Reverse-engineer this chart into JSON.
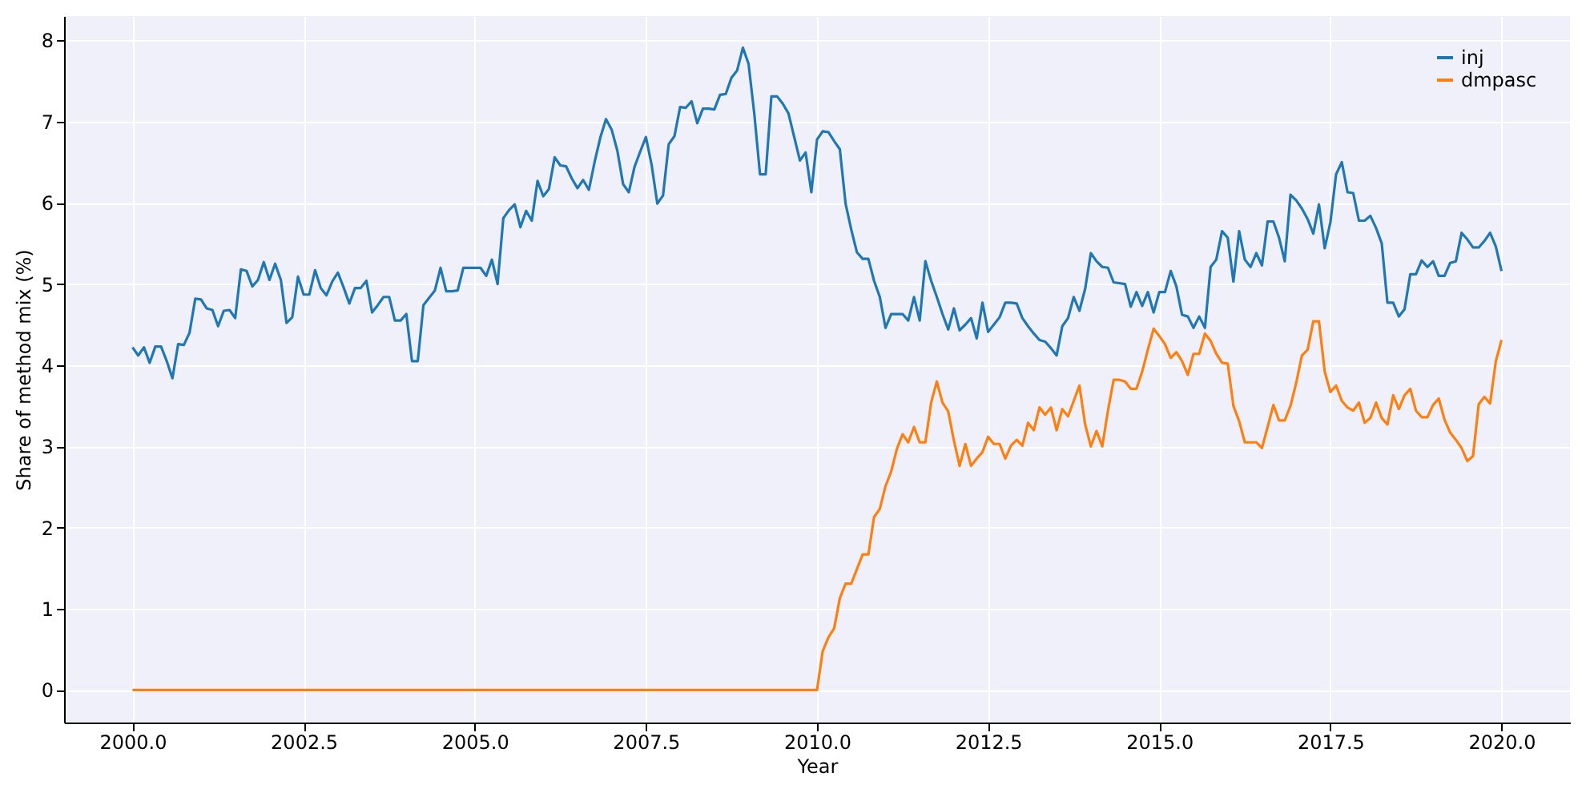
{
  "chart_data": {
    "type": "line",
    "xlabel": "Year",
    "ylabel": "Share of method mix (%)",
    "x": [
      2000,
      2000.083,
      2000.167,
      2000.25,
      2000.333,
      2000.417,
      2000.5,
      2000.583,
      2000.667,
      2000.75,
      2000.833,
      2000.917,
      2001,
      2001.083,
      2001.167,
      2001.25,
      2001.333,
      2001.417,
      2001.5,
      2001.583,
      2001.667,
      2001.75,
      2001.833,
      2001.917,
      2002,
      2002.083,
      2002.167,
      2002.25,
      2002.333,
      2002.417,
      2002.5,
      2002.583,
      2002.667,
      2002.75,
      2002.833,
      2002.917,
      2003,
      2003.083,
      2003.167,
      2003.25,
      2003.333,
      2003.417,
      2003.5,
      2003.583,
      2003.667,
      2003.75,
      2003.833,
      2003.917,
      2004,
      2004.083,
      2004.167,
      2004.25,
      2004.333,
      2004.417,
      2004.5,
      2004.583,
      2004.667,
      2004.75,
      2004.833,
      2004.917,
      2005,
      2005.083,
      2005.167,
      2005.25,
      2005.333,
      2005.417,
      2005.5,
      2005.583,
      2005.667,
      2005.75,
      2005.833,
      2005.917,
      2006,
      2006.083,
      2006.167,
      2006.25,
      2006.333,
      2006.417,
      2006.5,
      2006.583,
      2006.667,
      2006.75,
      2006.833,
      2006.917,
      2007,
      2007.083,
      2007.167,
      2007.25,
      2007.333,
      2007.417,
      2007.5,
      2007.583,
      2007.667,
      2007.75,
      2007.833,
      2007.917,
      2008,
      2008.083,
      2008.167,
      2008.25,
      2008.333,
      2008.417,
      2008.5,
      2008.583,
      2008.667,
      2008.75,
      2008.833,
      2008.917,
      2009,
      2009.083,
      2009.167,
      2009.25,
      2009.333,
      2009.417,
      2009.5,
      2009.583,
      2009.667,
      2009.75,
      2009.833,
      2009.917,
      2010,
      2010.083,
      2010.167,
      2010.25,
      2010.333,
      2010.417,
      2010.5,
      2010.583,
      2010.667,
      2010.75,
      2010.833,
      2010.917,
      2011,
      2011.083,
      2011.167,
      2011.25,
      2011.333,
      2011.417,
      2011.5,
      2011.583,
      2011.667,
      2011.75,
      2011.833,
      2011.917,
      2012,
      2012.083,
      2012.167,
      2012.25,
      2012.333,
      2012.417,
      2012.5,
      2012.583,
      2012.667,
      2012.75,
      2012.833,
      2012.917,
      2013,
      2013.083,
      2013.167,
      2013.25,
      2013.333,
      2013.417,
      2013.5,
      2013.583,
      2013.667,
      2013.75,
      2013.833,
      2013.917,
      2014,
      2014.083,
      2014.167,
      2014.25,
      2014.333,
      2014.417,
      2014.5,
      2014.583,
      2014.667,
      2014.75,
      2014.833,
      2014.917,
      2015,
      2015.083,
      2015.167,
      2015.25,
      2015.333,
      2015.417,
      2015.5,
      2015.583,
      2015.667,
      2015.75,
      2015.833,
      2015.917,
      2016,
      2016.083,
      2016.167,
      2016.25,
      2016.333,
      2016.417,
      2016.5,
      2016.583,
      2016.667,
      2016.75,
      2016.833,
      2016.917,
      2017,
      2017.083,
      2017.167,
      2017.25,
      2017.333,
      2017.417,
      2017.5,
      2017.583,
      2017.667,
      2017.75,
      2017.833,
      2017.917,
      2018,
      2018.083,
      2018.167,
      2018.25,
      2018.333,
      2018.417,
      2018.5,
      2018.583,
      2018.667,
      2018.75,
      2018.833,
      2018.917,
      2019,
      2019.083,
      2019.167,
      2019.25,
      2019.333,
      2019.417,
      2019.5,
      2019.583,
      2019.667,
      2019.75,
      2019.833,
      2019.917,
      2020
    ],
    "series": [
      {
        "name": "inj",
        "color": "#1f77b4",
        "values": [
          4.22,
          4.12,
          4.22,
          4.03,
          4.23,
          4.23,
          4.05,
          3.84,
          4.26,
          4.25,
          4.4,
          4.82,
          4.81,
          4.7,
          4.68,
          4.48,
          4.67,
          4.68,
          4.58,
          5.18,
          5.16,
          4.97,
          5.05,
          5.27,
          5.05,
          5.25,
          5.05,
          4.52,
          4.59,
          5.09,
          4.87,
          4.87,
          5.17,
          4.95,
          4.86,
          5.03,
          5.14,
          4.96,
          4.76,
          4.95,
          4.95,
          5.04,
          4.65,
          4.74,
          4.84,
          4.84,
          4.55,
          4.55,
          4.63,
          4.05,
          4.05,
          4.74,
          4.83,
          4.92,
          5.2,
          4.91,
          4.91,
          4.92,
          5.2,
          5.2,
          5.2,
          5.2,
          5.1,
          5.3,
          5.0,
          5.81,
          5.91,
          5.98,
          5.7,
          5.9,
          5.78,
          6.27,
          6.08,
          6.17,
          6.56,
          6.46,
          6.45,
          6.3,
          6.18,
          6.28,
          6.16,
          6.5,
          6.8,
          7.03,
          6.9,
          6.64,
          6.23,
          6.13,
          6.44,
          6.63,
          6.81,
          6.47,
          5.99,
          6.09,
          6.72,
          6.82,
          7.18,
          7.17,
          7.25,
          6.98,
          7.16,
          7.16,
          7.15,
          7.33,
          7.34,
          7.54,
          7.63,
          7.91,
          7.71,
          7.1,
          6.35,
          6.35,
          7.31,
          7.31,
          7.22,
          7.1,
          6.81,
          6.52,
          6.62,
          6.13,
          6.78,
          6.88,
          6.87,
          6.76,
          6.66,
          5.99,
          5.67,
          5.39,
          5.31,
          5.31,
          5.04,
          4.84,
          4.46,
          4.63,
          4.63,
          4.63,
          4.55,
          4.84,
          4.55,
          5.28,
          5.04,
          4.84,
          4.63,
          4.44,
          4.7,
          4.43,
          4.5,
          4.58,
          4.33,
          4.77,
          4.41,
          4.5,
          4.59,
          4.77,
          4.77,
          4.76,
          4.58,
          4.48,
          4.39,
          4.31,
          4.29,
          4.21,
          4.12,
          4.48,
          4.58,
          4.84,
          4.67,
          4.94,
          5.38,
          5.28,
          5.21,
          5.2,
          5.02,
          5.01,
          5.0,
          4.72,
          4.9,
          4.73,
          4.9,
          4.65,
          4.9,
          4.9,
          5.16,
          4.97,
          4.62,
          4.6,
          4.46,
          4.6,
          4.46,
          5.21,
          5.3,
          5.65,
          5.57,
          5.03,
          5.65,
          5.3,
          5.21,
          5.38,
          5.23,
          5.77,
          5.77,
          5.57,
          5.28,
          6.1,
          6.03,
          5.93,
          5.8,
          5.62,
          5.98,
          5.44,
          5.76,
          6.35,
          6.5,
          6.13,
          6.12,
          5.78,
          5.78,
          5.84,
          5.69,
          5.5,
          4.77,
          4.77,
          4.6,
          4.69,
          5.12,
          5.12,
          5.29,
          5.21,
          5.28,
          5.1,
          5.1,
          5.26,
          5.28,
          5.63,
          5.55,
          5.45,
          5.45,
          5.53,
          5.63,
          5.46,
          5.16
        ]
      },
      {
        "name": "dmpasc",
        "color": "#ff7f0e",
        "x": [
          2000,
          2010,
          2010.083,
          2010.167,
          2010.25,
          2010.333,
          2010.417,
          2010.5,
          2010.583,
          2010.667,
          2010.75,
          2010.833,
          2010.917,
          2011,
          2011.083,
          2011.167,
          2011.25,
          2011.333,
          2011.417,
          2011.5,
          2011.583,
          2011.667,
          2011.75,
          2011.833,
          2011.917,
          2012,
          2012.083,
          2012.167,
          2012.25,
          2012.333,
          2012.417,
          2012.5,
          2012.583,
          2012.667,
          2012.75,
          2012.833,
          2012.917,
          2013,
          2013.083,
          2013.167,
          2013.25,
          2013.333,
          2013.417,
          2013.5,
          2013.583,
          2013.667,
          2013.75,
          2013.833,
          2013.917,
          2014,
          2014.083,
          2014.167,
          2014.25,
          2014.333,
          2014.417,
          2014.5,
          2014.583,
          2014.667,
          2014.75,
          2014.833,
          2014.917,
          2015,
          2015.083,
          2015.167,
          2015.25,
          2015.333,
          2015.417,
          2015.5,
          2015.583,
          2015.667,
          2015.75,
          2015.833,
          2015.917,
          2016,
          2016.083,
          2016.167,
          2016.25,
          2016.333,
          2016.417,
          2016.5,
          2016.583,
          2016.667,
          2016.75,
          2016.833,
          2016.917,
          2017,
          2017.083,
          2017.167,
          2017.25,
          2017.333,
          2017.417,
          2017.5,
          2017.583,
          2017.667,
          2017.75,
          2017.833,
          2017.917,
          2018,
          2018.083,
          2018.167,
          2018.25,
          2018.333,
          2018.417,
          2018.5,
          2018.583,
          2018.667,
          2018.75,
          2018.833,
          2018.917,
          2019,
          2019.083,
          2019.167,
          2019.25,
          2019.333,
          2019.417,
          2019.5,
          2019.583,
          2019.667,
          2019.75,
          2019.833,
          2019.917,
          2020
        ],
        "values": [
          0,
          0,
          0.48,
          0.65,
          0.76,
          1.13,
          1.31,
          1.31,
          1.49,
          1.67,
          1.67,
          2.13,
          2.23,
          2.51,
          2.69,
          2.97,
          3.15,
          3.05,
          3.24,
          3.05,
          3.05,
          3.54,
          3.8,
          3.54,
          3.43,
          3.07,
          2.76,
          3.03,
          2.76,
          2.85,
          2.93,
          3.12,
          3.03,
          3.03,
          2.85,
          3.01,
          3.08,
          3.01,
          3.29,
          3.2,
          3.48,
          3.39,
          3.48,
          3.2,
          3.46,
          3.37,
          3.56,
          3.75,
          3.27,
          3.0,
          3.19,
          3.0,
          3.44,
          3.82,
          3.82,
          3.8,
          3.71,
          3.71,
          3.92,
          4.19,
          4.45,
          4.36,
          4.26,
          4.09,
          4.16,
          4.05,
          3.88,
          4.14,
          4.14,
          4.39,
          4.3,
          4.14,
          4.03,
          4.02,
          3.5,
          3.31,
          3.05,
          3.05,
          3.05,
          2.98,
          3.24,
          3.51,
          3.32,
          3.32,
          3.5,
          3.78,
          4.12,
          4.19,
          4.54,
          4.54,
          3.92,
          3.67,
          3.75,
          3.56,
          3.48,
          3.44,
          3.54,
          3.29,
          3.35,
          3.54,
          3.35,
          3.27,
          3.63,
          3.46,
          3.63,
          3.71,
          3.44,
          3.36,
          3.36,
          3.51,
          3.59,
          3.33,
          3.17,
          3.08,
          2.98,
          2.82,
          2.88,
          3.52,
          3.61,
          3.53,
          4.05,
          4.31
        ]
      }
    ],
    "xlim": [
      1999,
      2021
    ],
    "xticks": [
      {
        "value": 2000,
        "label": "2000.0"
      },
      {
        "value": 2002.5,
        "label": "2002.5"
      },
      {
        "value": 2005,
        "label": "2005.0"
      },
      {
        "value": 2007.5,
        "label": "2007.5"
      },
      {
        "value": 2010,
        "label": "2010.0"
      },
      {
        "value": 2012.5,
        "label": "2012.5"
      },
      {
        "value": 2015,
        "label": "2015.0"
      },
      {
        "value": 2017.5,
        "label": "2017.5"
      },
      {
        "value": 2020,
        "label": "2020.0"
      }
    ],
    "ylim": [
      -0.4,
      8.3
    ],
    "yticks": [
      0,
      1,
      2,
      3,
      4,
      5,
      6,
      7,
      8
    ],
    "grid": true,
    "legend": "top right",
    "marker": "none",
    "line_style": "solid"
  }
}
